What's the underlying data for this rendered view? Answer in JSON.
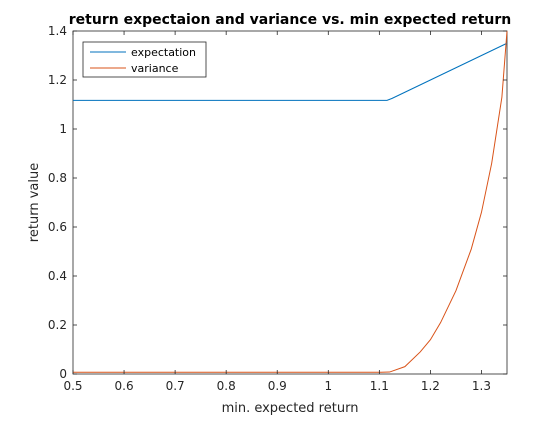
{
  "chart_data": {
    "type": "line",
    "title": "return expectaion and variance vs. min expected return",
    "xlabel": "min. expected return",
    "ylabel": "return value",
    "xlim": [
      0.5,
      1.35
    ],
    "ylim": [
      0,
      1.4
    ],
    "xticks": [
      0.5,
      0.6,
      0.7,
      0.8,
      0.9,
      1.0,
      1.1,
      1.2,
      1.3
    ],
    "xtick_labels": [
      "0.5",
      "0.6",
      "0.7",
      "0.8",
      "0.9",
      "1",
      "1.1",
      "1.2",
      "1.3"
    ],
    "yticks": [
      0,
      0.2,
      0.4,
      0.6,
      0.8,
      1.0,
      1.2,
      1.4
    ],
    "ytick_labels": [
      "0",
      "0.2",
      "0.4",
      "0.6",
      "0.8",
      "1",
      "1.2",
      "1.4"
    ],
    "grid": false,
    "legend_location": "top-left",
    "series": [
      {
        "name": "expectation",
        "color": "#0072BD",
        "x": [
          0.5,
          0.6,
          0.7,
          0.8,
          0.9,
          1.0,
          1.1,
          1.115,
          1.125,
          1.15,
          1.2,
          1.25,
          1.3,
          1.35
        ],
        "y": [
          1.117,
          1.117,
          1.117,
          1.117,
          1.117,
          1.117,
          1.117,
          1.117,
          1.125,
          1.15,
          1.2,
          1.25,
          1.3,
          1.35
        ]
      },
      {
        "name": "variance",
        "color": "#D95319",
        "x": [
          0.5,
          0.6,
          0.7,
          0.8,
          0.9,
          1.0,
          1.1,
          1.12,
          1.15,
          1.18,
          1.2,
          1.22,
          1.25,
          1.28,
          1.3,
          1.32,
          1.34,
          1.35
        ],
        "y": [
          0.007,
          0.007,
          0.007,
          0.007,
          0.007,
          0.007,
          0.007,
          0.008,
          0.03,
          0.09,
          0.14,
          0.21,
          0.34,
          0.51,
          0.66,
          0.86,
          1.13,
          1.4
        ]
      }
    ]
  }
}
